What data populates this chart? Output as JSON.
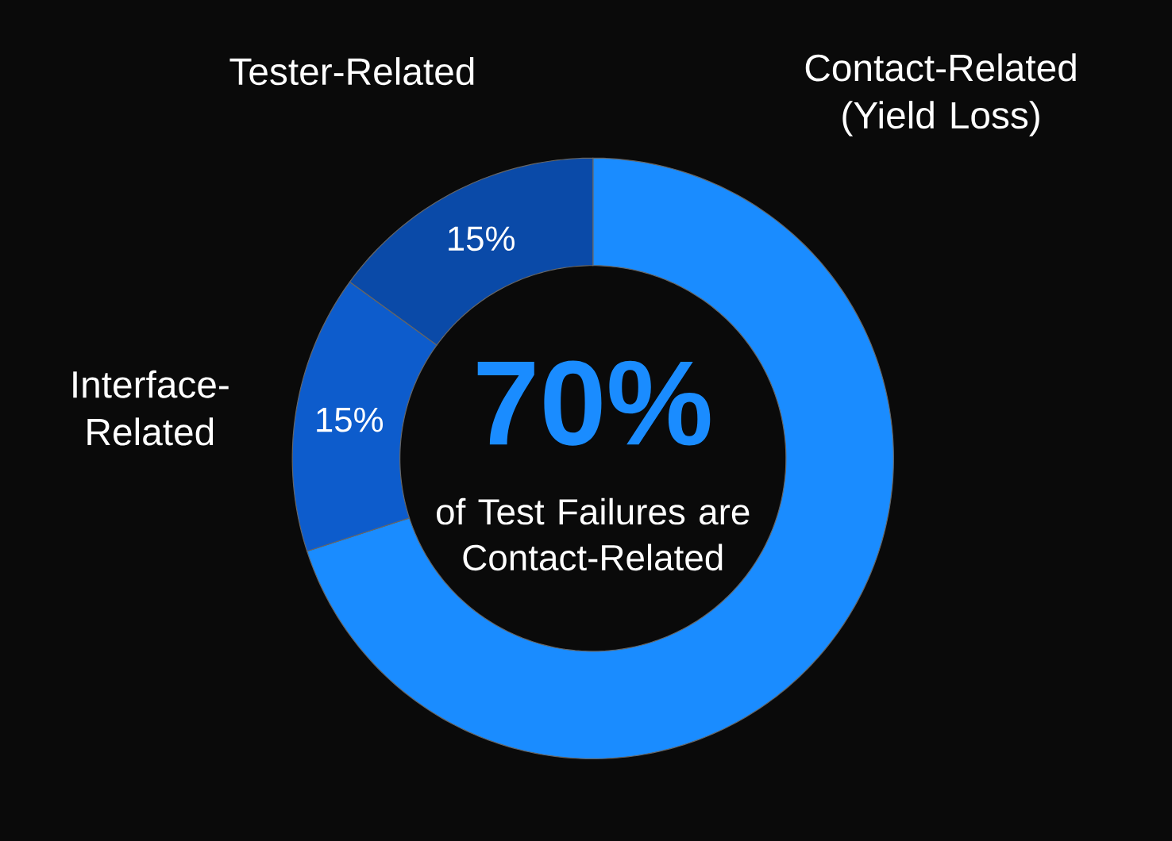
{
  "chart_data": {
    "type": "donut",
    "categories": [
      "Contact-Related (Yield Loss)",
      "Interface-Related",
      "Tester-Related"
    ],
    "values": [
      70,
      15,
      15
    ],
    "colors": [
      "#1a8cff",
      "#0d5ccc",
      "#0a4aa8"
    ],
    "value_labels": [
      null,
      "15%",
      "15%"
    ],
    "annotations": [
      "70%",
      "of Test Failures are Contact-Related"
    ]
  }
}
